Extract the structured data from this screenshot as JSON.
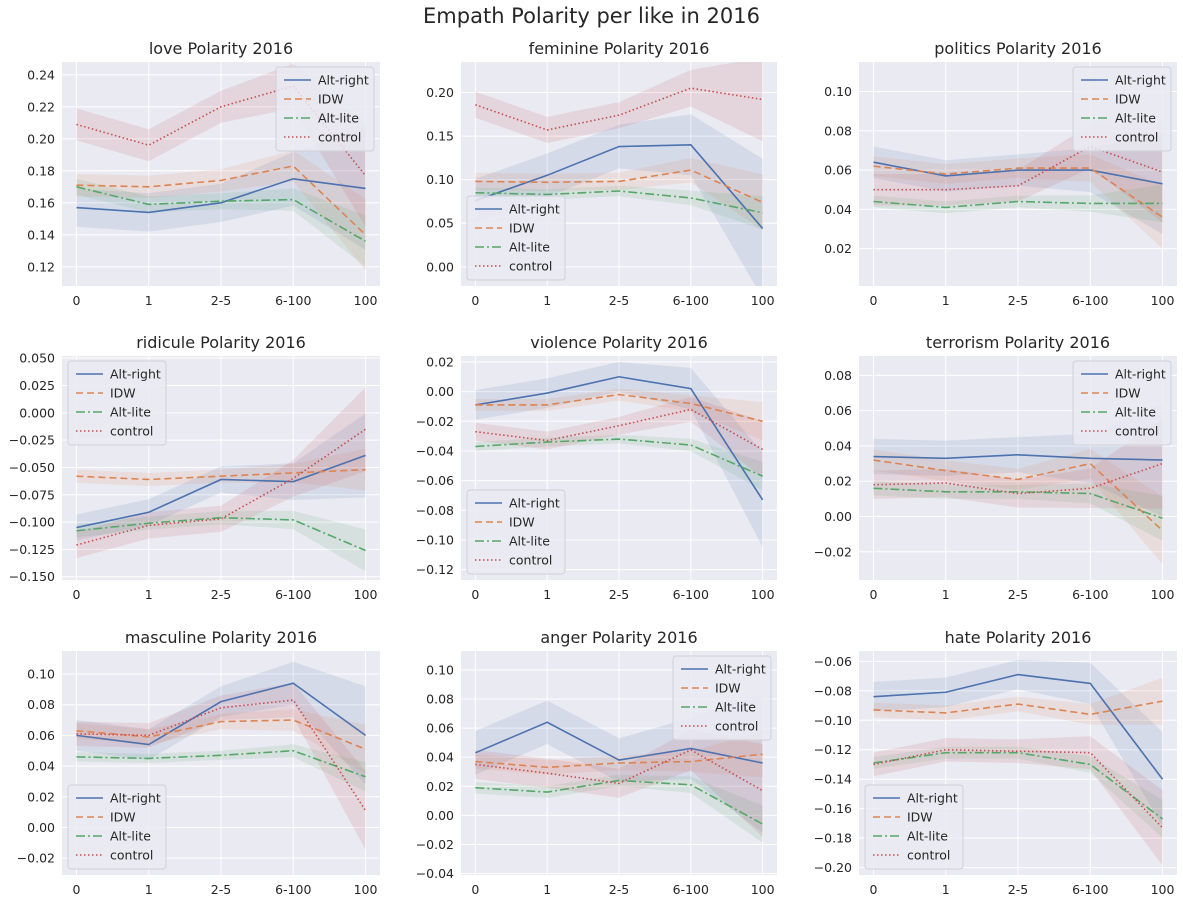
{
  "figure_title": "Empath Polarity per like in 2016",
  "colors": {
    "Alt-right": "#4c72b0",
    "IDW": "#dd8452",
    "Alt-lite": "#55a868",
    "control": "#c44e52",
    "panel_bg": "#eaeaf2",
    "grid": "#ffffff"
  },
  "chart_data": [
    {
      "type": "line",
      "title": "love Polarity 2016",
      "categories": [
        "0",
        "1",
        "2-5",
        "6-100",
        "100"
      ],
      "ylim": [
        0.108,
        0.248
      ],
      "yticks": [
        0.12,
        0.14,
        0.16,
        0.18,
        0.2,
        0.22,
        0.24
      ],
      "ytick_labels": [
        "0.12",
        "0.14",
        "0.16",
        "0.18",
        "0.20",
        "0.22",
        "0.24"
      ],
      "legend": "top-right",
      "series": [
        {
          "name": "Alt-right",
          "values": [
            0.157,
            0.154,
            0.16,
            0.175,
            0.169
          ],
          "ci": 0.012
        },
        {
          "name": "IDW",
          "values": [
            0.171,
            0.17,
            0.174,
            0.183,
            0.14
          ],
          "ci": 0.007
        },
        {
          "name": "Alt-lite",
          "values": [
            0.17,
            0.159,
            0.161,
            0.162,
            0.136
          ],
          "ci": 0.005
        },
        {
          "name": "control",
          "values": [
            0.209,
            0.196,
            0.22,
            0.233,
            0.177
          ],
          "ci": 0.01
        }
      ]
    },
    {
      "type": "line",
      "title": "feminine Polarity 2016",
      "categories": [
        "0",
        "1",
        "2-5",
        "6-100",
        "100"
      ],
      "ylim": [
        -0.022,
        0.235
      ],
      "yticks": [
        0.0,
        0.05,
        0.1,
        0.15,
        0.2
      ],
      "ytick_labels": [
        "0.00",
        "0.05",
        "0.10",
        "0.15",
        "0.20"
      ],
      "legend": "lower-left",
      "series": [
        {
          "name": "Alt-right",
          "values": [
            0.076,
            0.105,
            0.138,
            0.14,
            0.044
          ],
          "ci": 0.025
        },
        {
          "name": "IDW",
          "values": [
            0.098,
            0.097,
            0.098,
            0.111,
            0.074
          ],
          "ci": 0.01
        },
        {
          "name": "Alt-lite",
          "values": [
            0.085,
            0.083,
            0.087,
            0.079,
            0.062
          ],
          "ci": 0.006
        },
        {
          "name": "control",
          "values": [
            0.186,
            0.157,
            0.174,
            0.205,
            0.192
          ],
          "ci": 0.015
        }
      ]
    },
    {
      "type": "line",
      "title": "politics Polarity 2016",
      "categories": [
        "0",
        "1",
        "2-5",
        "6-100",
        "100"
      ],
      "ylim": [
        0.001,
        0.115
      ],
      "yticks": [
        0.02,
        0.04,
        0.06,
        0.08,
        0.1
      ],
      "ytick_labels": [
        "0.02",
        "0.04",
        "0.06",
        "0.08",
        "0.10"
      ],
      "legend": "top-right",
      "series": [
        {
          "name": "Alt-right",
          "values": [
            0.064,
            0.057,
            0.06,
            0.06,
            0.053
          ],
          "ci": 0.008
        },
        {
          "name": "IDW",
          "values": [
            0.062,
            0.058,
            0.061,
            0.061,
            0.036
          ],
          "ci": 0.005
        },
        {
          "name": "Alt-lite",
          "values": [
            0.044,
            0.041,
            0.044,
            0.043,
            0.043
          ],
          "ci": 0.003
        },
        {
          "name": "control",
          "values": [
            0.05,
            0.05,
            0.052,
            0.072,
            0.059
          ],
          "ci": 0.008
        }
      ]
    },
    {
      "type": "line",
      "title": "ridicule Polarity 2016",
      "categories": [
        "0",
        "1",
        "2-5",
        "6-100",
        "100"
      ],
      "ylim": [
        -0.153,
        0.052
      ],
      "yticks": [
        -0.15,
        -0.125,
        -0.1,
        -0.075,
        -0.05,
        -0.025,
        0.0,
        0.025,
        0.05
      ],
      "ytick_labels": [
        "−0.150",
        "−0.125",
        "−0.100",
        "−0.075",
        "−0.050",
        "−0.025",
        "0.000",
        "0.025",
        "0.050"
      ],
      "legend": "top-left",
      "series": [
        {
          "name": "Alt-right",
          "values": [
            -0.105,
            -0.091,
            -0.061,
            -0.063,
            -0.039
          ],
          "ci": 0.012
        },
        {
          "name": "IDW",
          "values": [
            -0.058,
            -0.061,
            -0.058,
            -0.055,
            -0.052
          ],
          "ci": 0.006
        },
        {
          "name": "Alt-lite",
          "values": [
            -0.108,
            -0.101,
            -0.096,
            -0.098,
            -0.126
          ],
          "ci": 0.006
        },
        {
          "name": "control",
          "values": [
            -0.121,
            -0.103,
            -0.097,
            -0.06,
            -0.015
          ],
          "ci": 0.012
        }
      ]
    },
    {
      "type": "line",
      "title": "violence Polarity 2016",
      "categories": [
        "0",
        "1",
        "2-5",
        "6-100",
        "100"
      ],
      "ylim": [
        -0.127,
        0.024
      ],
      "yticks": [
        -0.12,
        -0.1,
        -0.08,
        -0.06,
        -0.04,
        -0.02,
        0.0,
        0.02
      ],
      "ytick_labels": [
        "−0.12",
        "−0.10",
        "−0.08",
        "−0.06",
        "−0.04",
        "−0.02",
        "0.00",
        "0.02"
      ],
      "legend": "lower-left",
      "series": [
        {
          "name": "Alt-right",
          "values": [
            -0.009,
            -0.001,
            0.01,
            0.002,
            -0.073
          ],
          "ci": 0.01
        },
        {
          "name": "IDW",
          "values": [
            -0.009,
            -0.009,
            -0.002,
            -0.008,
            -0.02
          ],
          "ci": 0.004
        },
        {
          "name": "Alt-lite",
          "values": [
            -0.037,
            -0.034,
            -0.032,
            -0.036,
            -0.057
          ],
          "ci": 0.003
        },
        {
          "name": "control",
          "values": [
            -0.027,
            -0.033,
            -0.023,
            -0.012,
            -0.039
          ],
          "ci": 0.006
        }
      ]
    },
    {
      "type": "line",
      "title": "terrorism Polarity 2016",
      "categories": [
        "0",
        "1",
        "2-5",
        "6-100",
        "100"
      ],
      "ylim": [
        -0.036,
        0.091
      ],
      "yticks": [
        -0.02,
        0.0,
        0.02,
        0.04,
        0.06,
        0.08
      ],
      "ytick_labels": [
        "−0.02",
        "0.00",
        "0.02",
        "0.04",
        "0.06",
        "0.08"
      ],
      "legend": "top-right",
      "series": [
        {
          "name": "Alt-right",
          "values": [
            0.034,
            0.033,
            0.035,
            0.033,
            0.032
          ],
          "ci": 0.01
        },
        {
          "name": "IDW",
          "values": [
            0.032,
            0.026,
            0.021,
            0.03,
            -0.008
          ],
          "ci": 0.006
        },
        {
          "name": "Alt-lite",
          "values": [
            0.016,
            0.014,
            0.014,
            0.013,
            -0.001
          ],
          "ci": 0.004
        },
        {
          "name": "control",
          "values": [
            0.018,
            0.019,
            0.013,
            0.016,
            0.03
          ],
          "ci": 0.008
        }
      ]
    },
    {
      "type": "line",
      "title": "masculine Polarity 2016",
      "categories": [
        "0",
        "1",
        "2-5",
        "6-100",
        "100"
      ],
      "ylim": [
        -0.031,
        0.115
      ],
      "yticks": [
        -0.02,
        0.0,
        0.02,
        0.04,
        0.06,
        0.08,
        0.1
      ],
      "ytick_labels": [
        "−0.02",
        "0.00",
        "0.02",
        "0.04",
        "0.06",
        "0.08",
        "0.10"
      ],
      "legend": "lower-left",
      "series": [
        {
          "name": "Alt-right",
          "values": [
            0.06,
            0.054,
            0.082,
            0.094,
            0.06
          ],
          "ci": 0.01
        },
        {
          "name": "IDW",
          "values": [
            0.063,
            0.059,
            0.069,
            0.07,
            0.051
          ],
          "ci": 0.005
        },
        {
          "name": "Alt-lite",
          "values": [
            0.046,
            0.045,
            0.047,
            0.05,
            0.033
          ],
          "ci": 0.003
        },
        {
          "name": "control",
          "values": [
            0.061,
            0.06,
            0.078,
            0.083,
            0.011
          ],
          "ci": 0.008
        }
      ]
    },
    {
      "type": "line",
      "title": "anger Polarity 2016",
      "categories": [
        "0",
        "1",
        "2-5",
        "6-100",
        "100"
      ],
      "ylim": [
        -0.041,
        0.113
      ],
      "yticks": [
        -0.04,
        -0.02,
        0.0,
        0.02,
        0.04,
        0.06,
        0.08,
        0.1
      ],
      "ytick_labels": [
        "−0.04",
        "−0.02",
        "0.00",
        "0.02",
        "0.04",
        "0.06",
        "0.08",
        "0.10"
      ],
      "legend": "top-right",
      "series": [
        {
          "name": "Alt-right",
          "values": [
            0.043,
            0.064,
            0.038,
            0.046,
            0.036
          ],
          "ci": 0.015
        },
        {
          "name": "IDW",
          "values": [
            0.037,
            0.033,
            0.036,
            0.037,
            0.042
          ],
          "ci": 0.005
        },
        {
          "name": "Alt-lite",
          "values": [
            0.019,
            0.016,
            0.024,
            0.021,
            -0.006
          ],
          "ci": 0.004
        },
        {
          "name": "control",
          "values": [
            0.035,
            0.029,
            0.022,
            0.045,
            0.017
          ],
          "ci": 0.01
        }
      ]
    },
    {
      "type": "line",
      "title": "hate Polarity 2016",
      "categories": [
        "0",
        "1",
        "2-5",
        "6-100",
        "100"
      ],
      "ylim": [
        -0.205,
        -0.053
      ],
      "yticks": [
        -0.2,
        -0.18,
        -0.16,
        -0.14,
        -0.12,
        -0.1,
        -0.08,
        -0.06
      ],
      "ytick_labels": [
        "−0.20",
        "−0.18",
        "−0.16",
        "−0.14",
        "−0.12",
        "−0.10",
        "−0.08",
        "−0.06"
      ],
      "legend": "lower-left",
      "series": [
        {
          "name": "Alt-right",
          "values": [
            -0.084,
            -0.081,
            -0.069,
            -0.075,
            -0.14
          ],
          "ci": 0.01
        },
        {
          "name": "IDW",
          "values": [
            -0.093,
            -0.095,
            -0.089,
            -0.096,
            -0.087
          ],
          "ci": 0.005
        },
        {
          "name": "Alt-lite",
          "values": [
            -0.129,
            -0.122,
            -0.122,
            -0.13,
            -0.167
          ],
          "ci": 0.004
        },
        {
          "name": "control",
          "values": [
            -0.13,
            -0.12,
            -0.121,
            -0.122,
            -0.173
          ],
          "ci": 0.008
        }
      ]
    }
  ]
}
